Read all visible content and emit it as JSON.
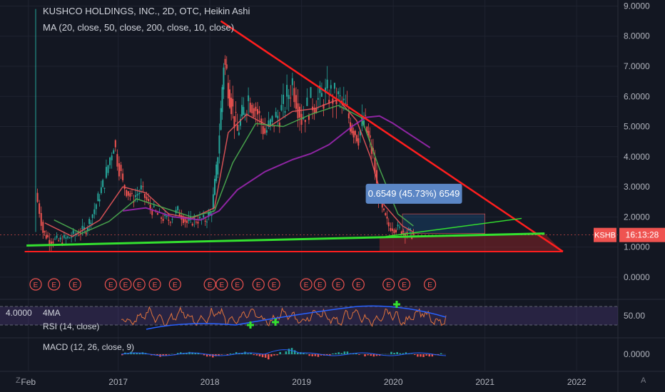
{
  "header": {
    "title": "KUSHCO HOLDINGS, INC., 2D, OTC, Heikin Ashi",
    "ma_label": "MA (20, close, 50, close, 200, close, 10, close)"
  },
  "panes": {
    "rsi_ma_label": "4MA",
    "rsi_label": "RSI (14, close)",
    "macd_label": "MACD (12, 26, close, 9)",
    "left_value": "4.0000"
  },
  "corners": {
    "left": "Z",
    "right": "A"
  },
  "colors": {
    "background": "#131722",
    "candle_up": "#26a69a",
    "candle_down": "#ef5350",
    "ma_fast": "#e9575a",
    "ma_mid": "#4caf50",
    "ma_slow": "#9c27b0",
    "trendline_red": "#ff1e1e",
    "trendline_green": "#34e02f",
    "rsi_band": "#3a2a5a"
  },
  "chart_data": {
    "type": "line",
    "title": "KUSHCO HOLDINGS, INC., 2D, OTC, Heikin Ashi",
    "x_ticks": [
      "Feb",
      "2017",
      "2018",
      "2019",
      "2020",
      "2021",
      "2022"
    ],
    "y_ticks": [
      "9.0000",
      "8.0000",
      "7.0000",
      "6.0000",
      "5.0000",
      "4.0000",
      "3.0000",
      "2.0000",
      "1.0000",
      "0.0000"
    ],
    "ylim": [
      -0.5,
      9.2
    ],
    "x_range": [
      2016.0,
      2022.35
    ],
    "price_label": {
      "symbol": "KSHB",
      "countdown": "16:13:28",
      "value": 1.4
    },
    "measure_label": "0.6549 (45.73%) 6549",
    "rsi_ticks": [
      "50.00"
    ],
    "macd_ticks": [
      "0.0000"
    ],
    "earnings_marker": "E",
    "earnings_x": [
      2016.0,
      2016.2,
      2016.43,
      2016.82,
      2016.98,
      2017.13,
      2017.3,
      2017.52,
      2017.9,
      2018.03,
      2018.2,
      2018.43,
      2018.6,
      2018.95,
      2019.1,
      2019.3,
      2019.52,
      2019.85,
      2020.02,
      2020.3
    ],
    "series": [
      {
        "name": "",
        "x": [
          2016.0,
          2016.04,
          2016.08,
          2016.15,
          2016.25,
          2016.35,
          2016.45,
          2016.55,
          2016.62,
          2016.68,
          2016.75,
          2016.85,
          2016.95,
          2017.05,
          2017.15,
          2017.25,
          2017.35,
          2017.45,
          2017.55,
          2017.65,
          2017.75,
          2017.85,
          2017.92,
          2017.97,
          2018.02,
          2018.05,
          2018.1,
          2018.15,
          2018.2,
          2018.25,
          2018.32,
          2018.4,
          2018.5,
          2018.6,
          2018.7,
          2018.8,
          2018.9,
          2019.0,
          2019.1,
          2019.2,
          2019.3,
          2019.38,
          2019.45,
          2019.52,
          2019.58,
          2019.63,
          2019.68,
          2019.72,
          2019.78,
          2019.85,
          2019.95,
          2020.05,
          2020.12
        ],
        "values": [
          2.8,
          2.2,
          1.5,
          1.25,
          1.2,
          1.3,
          1.45,
          1.6,
          2.1,
          2.6,
          3.2,
          4.5,
          3.1,
          2.6,
          2.9,
          2.3,
          2.0,
          1.9,
          2.2,
          1.8,
          1.9,
          1.9,
          2.2,
          3.5,
          5.5,
          7.2,
          6.5,
          5.5,
          4.8,
          5.3,
          6.0,
          5.6,
          4.8,
          5.2,
          5.6,
          6.5,
          5.3,
          5.8,
          5.9,
          6.1,
          5.9,
          5.6,
          5.0,
          4.7,
          5.2,
          4.6,
          4.0,
          3.0,
          2.2,
          1.7,
          1.6,
          1.5,
          1.4
        ]
      }
    ],
    "ma_series": [
      {
        "name": "",
        "values_x": [
          2016.1,
          2016.4,
          2016.7,
          2016.95,
          2017.2,
          2017.45,
          2017.7,
          2017.95,
          2018.1,
          2018.3,
          2018.55,
          2018.8,
          2019.05,
          2019.3,
          2019.5,
          2019.65,
          2019.8,
          2020.0,
          2020.12
        ],
        "values_y": [
          1.8,
          1.35,
          1.9,
          3.0,
          2.8,
          2.1,
          1.95,
          2.3,
          4.8,
          5.4,
          5.0,
          5.5,
          5.6,
          5.9,
          5.2,
          4.0,
          2.4,
          1.7,
          1.5
        ]
      },
      {
        "name": "",
        "values_x": [
          2016.2,
          2016.5,
          2016.8,
          2017.1,
          2017.4,
          2017.7,
          2017.95,
          2018.15,
          2018.4,
          2018.7,
          2019.0,
          2019.3,
          2019.55,
          2019.75,
          2019.95,
          2020.12
        ],
        "values_y": [
          1.9,
          1.45,
          1.85,
          2.6,
          2.3,
          2.0,
          2.2,
          3.8,
          5.1,
          5.0,
          5.4,
          5.7,
          5.3,
          3.6,
          2.1,
          1.7
        ]
      },
      {
        "name": "",
        "values_x": [
          2016.95,
          2017.2,
          2017.5,
          2017.8,
          2018.0,
          2018.2,
          2018.5,
          2018.8,
          2019.0,
          2019.2,
          2019.45,
          2019.6,
          2019.75,
          2019.9,
          2020.05,
          2020.2,
          2020.3
        ],
        "values_y": [
          2.2,
          2.3,
          2.0,
          1.9,
          2.2,
          2.9,
          3.5,
          3.9,
          4.1,
          4.4,
          5.0,
          5.3,
          5.35,
          5.1,
          4.8,
          4.5,
          4.3
        ]
      }
    ],
    "trendlines": {
      "red_upper": {
        "x": [
          2018.02,
          2021.75
        ],
        "y": [
          8.5,
          0.85
        ]
      },
      "red_lower": {
        "x": [
          2015.88,
          2021.75
        ],
        "y": [
          0.85,
          0.85
        ]
      },
      "green_lower": {
        "x": [
          2015.9,
          2021.55
        ],
        "y": [
          1.05,
          1.45
        ]
      },
      "green_upper": {
        "x": [
          2019.82,
          2021.3
        ],
        "y": [
          1.35,
          1.95
        ]
      }
    }
  }
}
